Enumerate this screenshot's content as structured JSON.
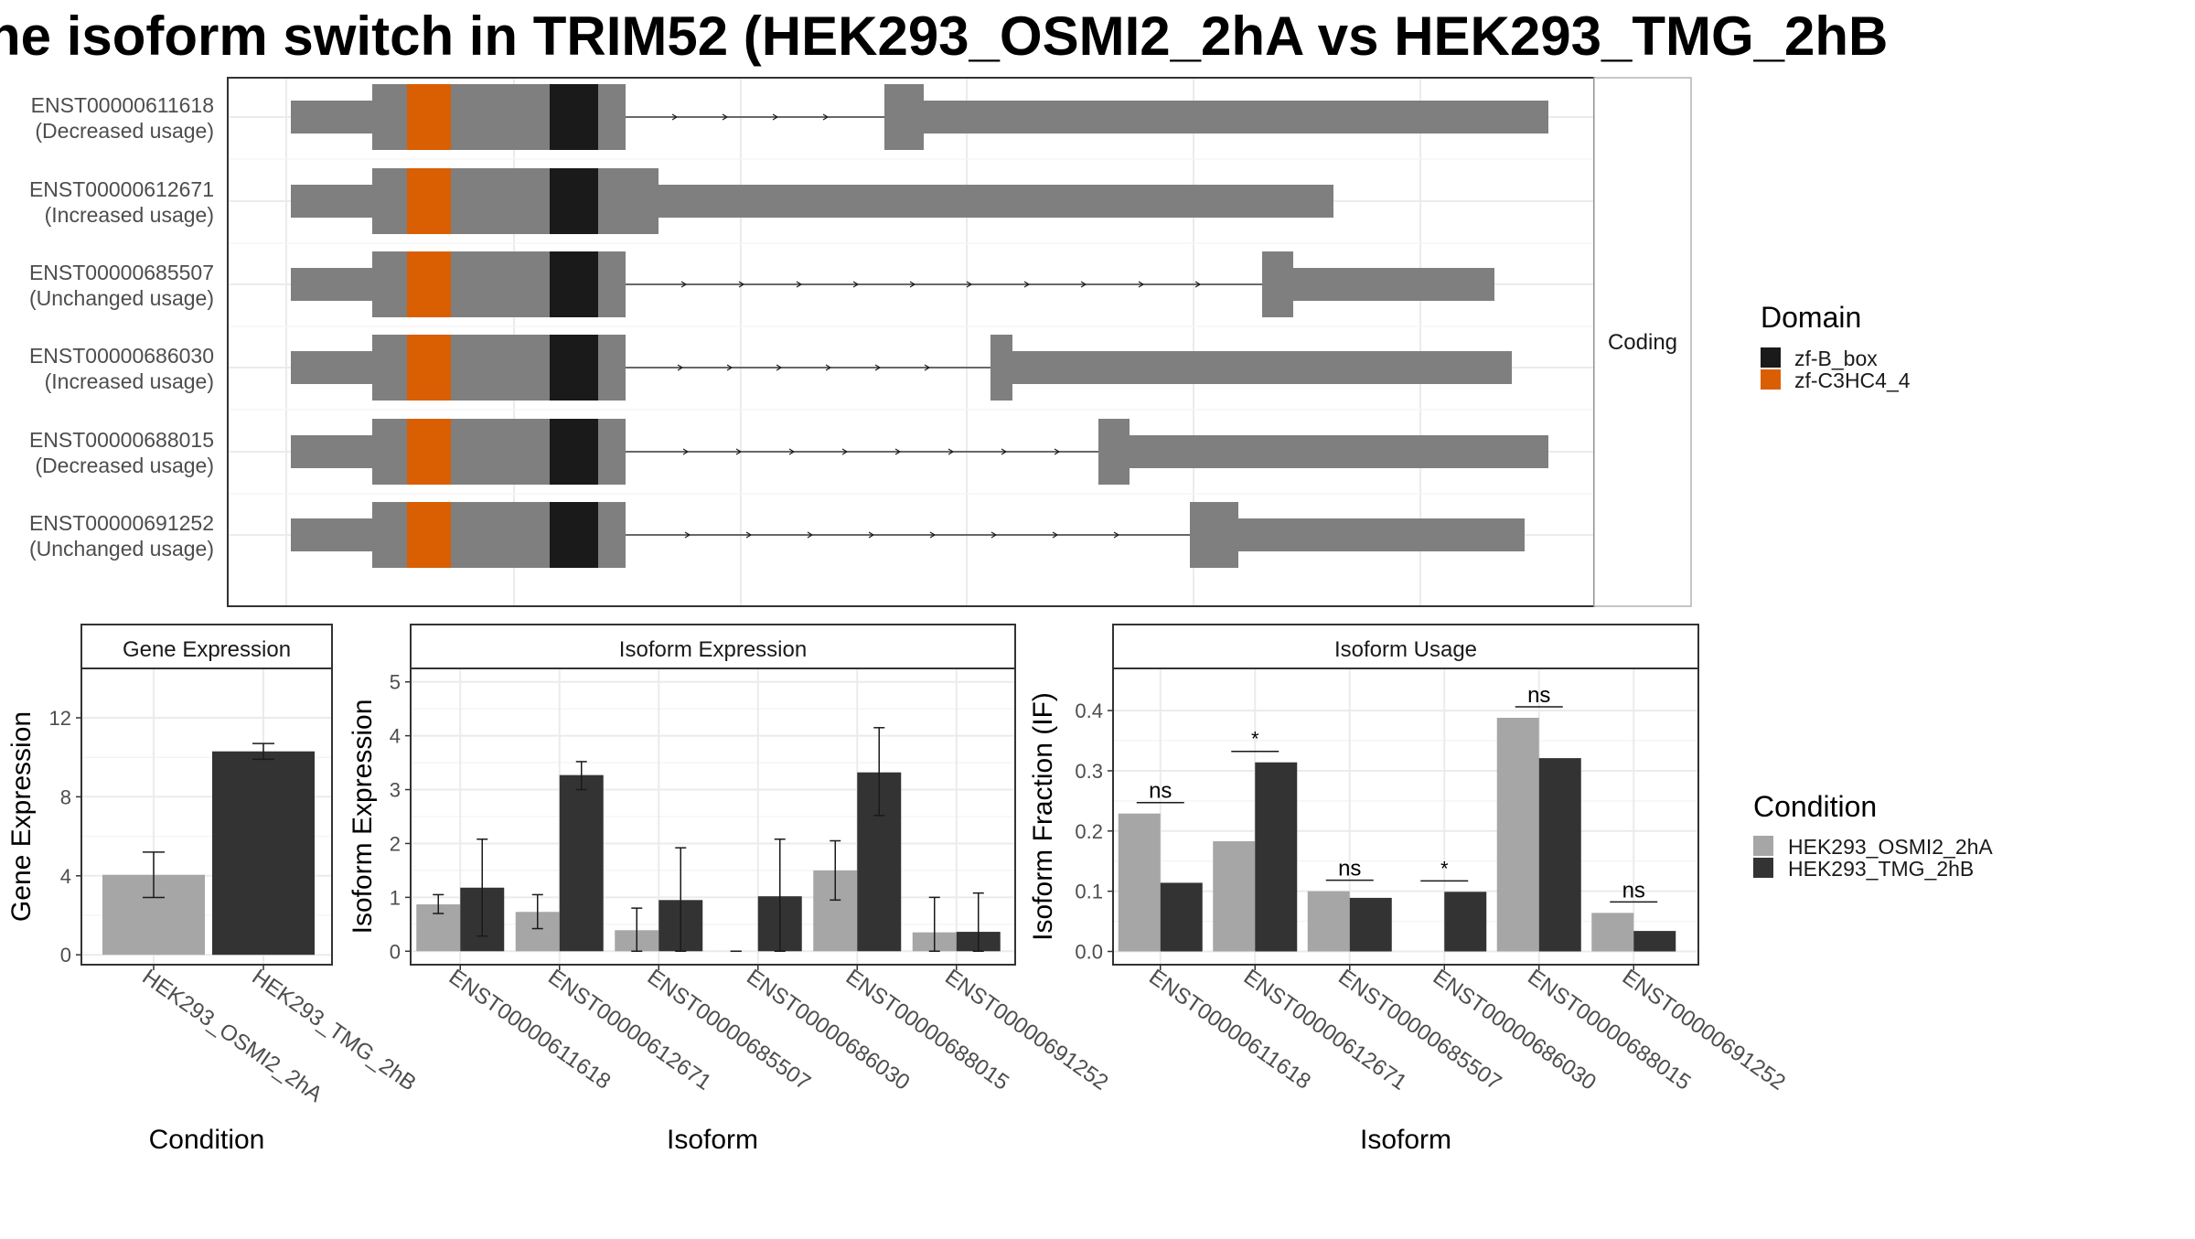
{
  "title": "he isoform switch in TRIM52 (HEK293_OSMI2_2hA vs HEK293_TMG_2hB",
  "colors": {
    "exon": "#7f7f7f",
    "zf_B_box": "#1a1a1a",
    "zf_C3HC4_4": "#d95f02",
    "cond_A": "#a6a6a6",
    "cond_B": "#333333",
    "panel_border": "#333333",
    "strip_fill": "#ffffff",
    "grid": "#ebebeb"
  },
  "structure": {
    "strip_label": "Coding",
    "isoforms": [
      {
        "id": "ENST00000611618",
        "usage": "(Decreased usage)"
      },
      {
        "id": "ENST00000612671",
        "usage": "(Increased usage)"
      },
      {
        "id": "ENST00000685507",
        "usage": "(Unchanged usage)"
      },
      {
        "id": "ENST00000686030",
        "usage": "(Increased usage)"
      },
      {
        "id": "ENST00000688015",
        "usage": "(Decreased usage)"
      },
      {
        "id": "ENST00000691252",
        "usage": "(Unchanged usage)"
      }
    ]
  },
  "legend_domain": {
    "title": "Domain",
    "items": [
      "zf-B_box",
      "zf-C3HC4_4"
    ]
  },
  "legend_condition": {
    "title": "Condition",
    "items": [
      "HEK293_OSMI2_2hA",
      "HEK293_TMG_2hB"
    ]
  },
  "chart_data": [
    {
      "type": "bar",
      "title": "Gene Expression",
      "xlabel": "Condition",
      "ylabel": "Gene Expression",
      "categories": [
        "HEK293_OSMI2_2hA",
        "HEK293_TMG_2hB"
      ],
      "values": [
        4.05,
        10.3
      ],
      "errors": [
        [
          2.9,
          5.2
        ],
        [
          9.9,
          10.7
        ]
      ],
      "ylim": [
        -0.5,
        14.5
      ],
      "yticks": [
        0,
        4,
        8,
        12
      ]
    },
    {
      "type": "bar",
      "title": "Isoform Expression",
      "xlabel": "Isoform",
      "ylabel": "Isoform Expression",
      "categories": [
        "ENST00000611618",
        "ENST00000612671",
        "ENST00000685507",
        "ENST00000686030",
        "ENST00000688015",
        "ENST00000691252"
      ],
      "series": [
        {
          "name": "HEK293_OSMI2_2hA",
          "values": [
            0.87,
            0.73,
            0.39,
            0.0,
            1.5,
            0.35
          ],
          "errors": [
            [
              0.7,
              1.05
            ],
            [
              0.42,
              1.05
            ],
            [
              0.0,
              0.8
            ],
            [
              0.0,
              0.0
            ],
            [
              0.95,
              2.05
            ],
            [
              0.0,
              1.0
            ]
          ]
        },
        {
          "name": "HEK293_TMG_2hB",
          "values": [
            1.18,
            3.27,
            0.95,
            1.02,
            3.32,
            0.36
          ],
          "errors": [
            [
              0.28,
              2.08
            ],
            [
              3.0,
              3.52
            ],
            [
              0.0,
              1.92
            ],
            [
              0.0,
              2.08
            ],
            [
              2.52,
              4.15
            ],
            [
              0.0,
              1.08
            ]
          ]
        }
      ],
      "ylim": [
        -0.25,
        5.25
      ],
      "yticks": [
        0,
        1,
        2,
        3,
        4,
        5
      ]
    },
    {
      "type": "bar",
      "title": "Isoform Usage",
      "xlabel": "Isoform",
      "ylabel": "Isoform Fraction (IF)",
      "categories": [
        "ENST00000611618",
        "ENST00000612671",
        "ENST00000685507",
        "ENST00000686030",
        "ENST00000688015",
        "ENST00000691252"
      ],
      "series": [
        {
          "name": "HEK293_OSMI2_2hA",
          "values": [
            0.229,
            0.183,
            0.1,
            0.0,
            0.388,
            0.064
          ]
        },
        {
          "name": "HEK293_TMG_2hB",
          "values": [
            0.114,
            0.314,
            0.089,
            0.099,
            0.321,
            0.034
          ]
        }
      ],
      "significance": [
        "ns",
        "*",
        "ns",
        "*",
        "ns",
        "ns"
      ],
      "ylim": [
        -0.022,
        0.47
      ],
      "yticks": [
        0.0,
        0.1,
        0.2,
        0.3,
        0.4
      ],
      "ytick_labels": [
        "0.0",
        "0.1",
        "0.2",
        "0.3",
        "0.4"
      ]
    }
  ]
}
